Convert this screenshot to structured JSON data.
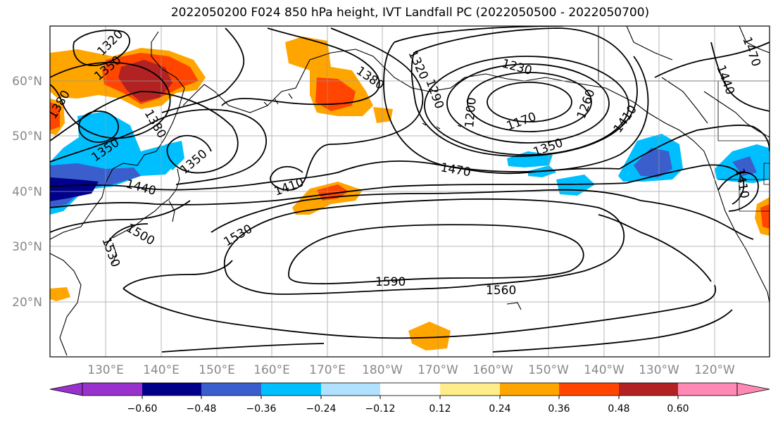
{
  "title": "2022050200 F024 850 hPa height, IVT Landfall PC (2022050500 - 2022050700)",
  "latitude_labels": [
    "60°N",
    "50°N",
    "40°N",
    "30°N",
    "20°N"
  ],
  "longitude_labels": [
    "130°E",
    "140°E",
    "150°E",
    "160°E",
    "170°E",
    "180°W",
    "170°W",
    "160°W",
    "150°W",
    "140°W",
    "130°W",
    "120°W"
  ],
  "contour_labels": [
    "1320",
    "1350",
    "1380",
    "1380",
    "1380",
    "1350",
    "1350",
    "1440",
    "1500",
    "1530",
    "1410",
    "1530",
    "1590",
    "1560",
    "1470",
    "1350",
    "1170",
    "1230",
    "1260",
    "1290",
    "1320",
    "1200",
    "1410",
    "1470",
    "1440",
    "1410"
  ],
  "colorbar": {
    "ticks": [
      "−0.60",
      "−0.48",
      "−0.36",
      "−0.24",
      "−0.12",
      "0.12",
      "0.24",
      "0.36",
      "0.48",
      "0.60"
    ],
    "colors": [
      "#9932cc",
      "#00008b",
      "#3a5fcd",
      "#00bfff",
      "#b0e2ff",
      "#ffffff",
      "#ffec8b",
      "#ffa500",
      "#ff4500",
      "#b22222",
      "#ff88b4"
    ]
  }
}
